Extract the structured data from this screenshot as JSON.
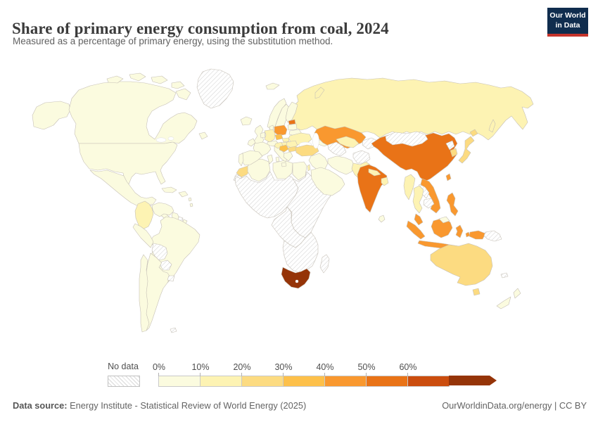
{
  "header": {
    "title": "Share of primary energy consumption from coal, 2024",
    "subtitle": "Measured as a percentage of primary energy, using the substitution method.",
    "logo": {
      "line1": "Our World",
      "line2": "in Data",
      "bg_color": "#102d4e",
      "accent_color": "#c5342b"
    }
  },
  "legend": {
    "no_data_label": "No data",
    "stops": [
      {
        "label": "0%",
        "color": "#fbfbdf"
      },
      {
        "label": "10%",
        "color": "#fdf3b3"
      },
      {
        "label": "20%",
        "color": "#fcdb81"
      },
      {
        "label": "30%",
        "color": "#fdc04a"
      },
      {
        "label": "40%",
        "color": "#f9982f"
      },
      {
        "label": "50%",
        "color": "#e97317"
      },
      {
        "label": "60%",
        "color": "#cb4d0e"
      },
      {
        "label": "70%",
        "color": "#953408"
      }
    ]
  },
  "footer": {
    "source_label": "Data source:",
    "source_text": " Energy Institute - Statistical Review of World Energy (2025)",
    "right_text": "OurWorldinData.org/energy | CC BY"
  },
  "chart_data": {
    "type": "choropleth",
    "title": "Share of primary energy consumption from coal, 2024",
    "unit": "% of primary energy (substitution method)",
    "scale_min": "0%",
    "scale_max": "70%+",
    "bucket_colors": {
      "0-10": "#fbfbdf",
      "10-20": "#fdf3b3",
      "20-30": "#fcdb81",
      "30-40": "#fdc04a",
      "40-50": "#f9982f",
      "50-60": "#e97317",
      "60-70": "#cb4d0e",
      "70+": "#953408"
    },
    "regions": {
      "canada": "0-10",
      "united-states": "0-10",
      "greenland": "no-data",
      "mexico": "0-10",
      "guatemala-honduras-nicaragua": "no-data",
      "costa-rica-panama": "0-10",
      "cuba": "0-10",
      "hispaniola": "0-10",
      "lesser-antilles": "0-10",
      "colombia": "10-20",
      "venezuela": "0-10",
      "guyana": "0-10",
      "suriname": "no-data",
      "french-guiana": "0-10",
      "brazil": "0-10",
      "peru": "0-10",
      "bolivia": "no-data",
      "paraguay": "no-data",
      "uruguay": "no-data",
      "argentina": "0-10",
      "chile": "0-10",
      "falkland-islands": "no-data",
      "iceland": "0-10",
      "ireland": "0-10",
      "united-kingdom": "0-10",
      "portugal": "0-10",
      "spain": "0-10",
      "france": "0-10",
      "belgium-netherlands": "0-10",
      "germany": "10-20",
      "denmark": "0-10",
      "norway": "0-10",
      "sweden": "0-10",
      "finland": "0-10",
      "estonia": "50-60",
      "latvia-lithuania": "0-10",
      "belarus": "0-10",
      "poland": "40-50",
      "czechia": "30-40",
      "slovakia": "10-20",
      "austria-switzerland": "0-10",
      "hungary": "10-20",
      "italy": "0-10",
      "croatia-bosnia": "10-20",
      "serbia": "30-40",
      "romania": "10-20",
      "bulgaria": "20-30",
      "greece": "0-10",
      "ukraine": "10-20",
      "turkey": "20-30",
      "caucasus": "0-10",
      "syria-iraq": "0-10",
      "israel": "10-20",
      "saudi-arabia": "0-10",
      "iran": "0-10",
      "afghanistan": "no-data",
      "pakistan": "10-20",
      "turkmenistan": "no-data",
      "uzbekistan": "10-20",
      "kyrgyzstan-tajikistan": "no-data",
      "kazakhstan": "40-50",
      "russia": "10-20",
      "svalbard": "0-10",
      "mongolia": "no-data",
      "china": "50-60",
      "north-korea": "no-data",
      "south-korea": "20-30",
      "japan": "20-30",
      "taiwan": "40-50",
      "india": "50-60",
      "nepal": "10-20",
      "bangladesh": "10-20",
      "sri-lanka": "0-10",
      "myanmar": "10-20",
      "thailand": "10-20",
      "laos": "no-data",
      "cambodia": "no-data",
      "vietnam": "40-50",
      "malaysia": "40-50",
      "brunei": "0-10",
      "indonesia": "40-50",
      "timor": "no-data",
      "papua-new-guinea": "no-data",
      "philippines": "40-50",
      "morocco": "20-30",
      "western-sahara": "no-data",
      "algeria": "0-10",
      "tunisia": "0-10",
      "libya": "0-10",
      "egypt": "0-10",
      "west-africa": "no-data",
      "east-africa": "no-data",
      "central-africa": "no-data",
      "southern-africa": "no-data",
      "south-africa": "70+",
      "madagascar": "no-data",
      "australia": "20-30",
      "new-zealand": "0-10",
      "new-caledonia": "no-data"
    }
  }
}
